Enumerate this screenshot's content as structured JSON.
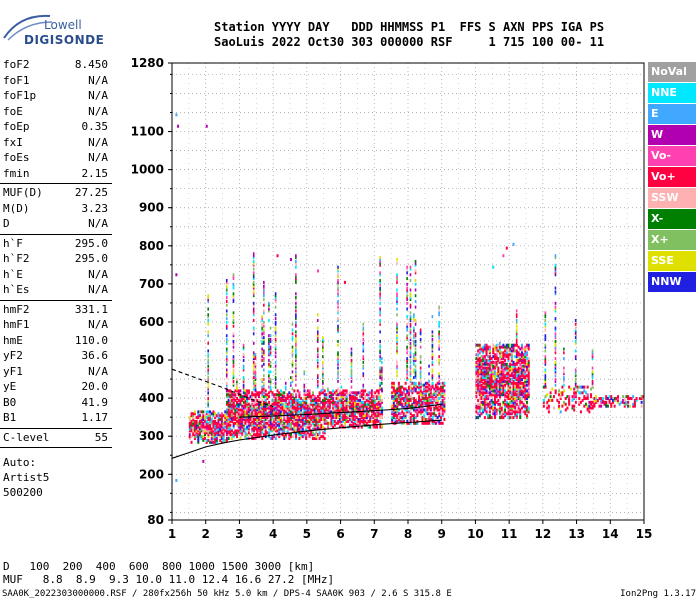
{
  "logo": {
    "line1": "Lowell",
    "line2": "DIGISONDE"
  },
  "header": {
    "row1": "Station YYYY DAY   DDD HHMMSS P1  FFS S AXN PPS IGA PS",
    "row2": "SaoLuis 2022 Oct30 303 000000 RSF     1 715 100 00- 11"
  },
  "params": [
    {
      "name": "foF2",
      "value": "8.450"
    },
    {
      "name": "foF1",
      "value": "N/A"
    },
    {
      "name": "foF1p",
      "value": "N/A"
    },
    {
      "name": "foE",
      "value": "N/A"
    },
    {
      "name": "foEp",
      "value": "0.35"
    },
    {
      "name": "fxI",
      "value": "N/A"
    },
    {
      "name": "foEs",
      "value": "N/A"
    },
    {
      "name": "fmin",
      "value": "2.15"
    },
    {
      "sep": true
    },
    {
      "name": "MUF(D)",
      "value": "27.25"
    },
    {
      "name": "M(D)",
      "value": "3.23"
    },
    {
      "name": "D",
      "value": "N/A"
    },
    {
      "sep": true
    },
    {
      "name": "h`F",
      "value": "295.0"
    },
    {
      "name": "h`F2",
      "value": "295.0"
    },
    {
      "name": "h`E",
      "value": "N/A"
    },
    {
      "name": "h`Es",
      "value": "N/A"
    },
    {
      "sep": true
    },
    {
      "name": "hmF2",
      "value": "331.1"
    },
    {
      "name": "hmF1",
      "value": "N/A"
    },
    {
      "name": "hmE",
      "value": "110.0"
    },
    {
      "name": "yF2",
      "value": "36.6"
    },
    {
      "name": "yF1",
      "value": "N/A"
    },
    {
      "name": "yE",
      "value": "20.0"
    },
    {
      "name": "B0",
      "value": "41.9"
    },
    {
      "name": "B1",
      "value": "1.17"
    },
    {
      "sep": true
    },
    {
      "name": "C-level",
      "value": "55"
    },
    {
      "sep": true
    }
  ],
  "auto": [
    "Auto:",
    "Artist5",
    "500200"
  ],
  "legend": [
    {
      "label": "NoVal",
      "color": "#a0a0a0"
    },
    {
      "label": "NNE",
      "color": "#00e8ff"
    },
    {
      "label": "E",
      "color": "#40a8ff"
    },
    {
      "label": "W",
      "color": "#b000b0"
    },
    {
      "label": "Vo-",
      "color": "#ff40b0"
    },
    {
      "label": "Vo+",
      "color": "#ff0040"
    },
    {
      "label": "SSW",
      "color": "#ffb0b0"
    },
    {
      "label": "X-",
      "color": "#008000"
    },
    {
      "label": "X+",
      "color": "#80c060"
    },
    {
      "label": "SSE",
      "color": "#e0e000"
    },
    {
      "label": "NNW",
      "color": "#2020e0"
    }
  ],
  "muf_table": {
    "d_label": "D",
    "d_row": "100  200  400  600  800 1000 1500 3000 [km]",
    "muf_label": "MUF",
    "muf_row": "8.8  8.9  9.3 10.0 11.0 12.4 16.6 27.2 [MHz]"
  },
  "footer": {
    "left": "SAA0K_2022303000000.RSF / 280fx256h 50 kHz 5.0 km / DPS-4 SAA0K 903 / 2.6 S 315.8 E",
    "right": "Ion2Png 1.3.17"
  },
  "chart_data": {
    "type": "scatter",
    "title": "",
    "xlabel": "",
    "ylabel": "",
    "x_ticks": [
      1,
      2,
      3,
      4,
      5,
      6,
      7,
      8,
      9,
      10,
      11,
      12,
      13,
      14,
      15
    ],
    "y_ticks": [
      80,
      200,
      300,
      400,
      500,
      600,
      700,
      800,
      900,
      1000,
      1100,
      1280
    ],
    "xlim": [
      1,
      15
    ],
    "ylim": [
      80,
      1280
    ],
    "grid": true,
    "clusters": [
      {
        "fmin": 1.5,
        "fmax": 2.6,
        "hmin": 280,
        "hmax": 365,
        "density": 0.85,
        "spike": 0.05
      },
      {
        "fmin": 2.6,
        "fmax": 5.5,
        "hmin": 290,
        "hmax": 420,
        "density": 0.9,
        "spike": 0.35
      },
      {
        "fmin": 5.5,
        "fmax": 7.2,
        "hmin": 320,
        "hmax": 420,
        "density": 0.85,
        "spike": 0.15
      },
      {
        "fmin": 7.5,
        "fmax": 9.1,
        "hmin": 330,
        "hmax": 440,
        "density": 0.8,
        "spike": 0.25
      },
      {
        "fmin": 10.0,
        "fmax": 11.6,
        "hmin": 345,
        "hmax": 540,
        "density": 0.85,
        "spike": 0.05
      },
      {
        "fmin": 12.0,
        "fmax": 13.5,
        "hmin": 360,
        "hmax": 430,
        "density": 0.35,
        "spike": 0.1
      },
      {
        "fmin": 13.5,
        "fmax": 15.0,
        "hmin": 375,
        "hmax": 405,
        "density": 0.6,
        "spike": 0.0
      }
    ],
    "scattered_points": [
      {
        "f": 1.1,
        "h": 1140,
        "c": "#40a8ff"
      },
      {
        "f": 1.15,
        "h": 1110,
        "c": "#b000b0"
      },
      {
        "f": 2.0,
        "h": 1110,
        "c": "#b000b0"
      },
      {
        "f": 1.1,
        "h": 720,
        "c": "#b000b0"
      },
      {
        "f": 1.1,
        "h": 180,
        "c": "#40a8ff"
      },
      {
        "f": 1.9,
        "h": 230,
        "c": "#b000b0"
      },
      {
        "f": 10.8,
        "h": 770,
        "c": "#ff40b0"
      },
      {
        "f": 10.9,
        "h": 790,
        "c": "#ff0040"
      },
      {
        "f": 11.1,
        "h": 800,
        "c": "#40a8ff"
      },
      {
        "f": 10.5,
        "h": 740,
        "c": "#00e8ff"
      },
      {
        "f": 4.1,
        "h": 770,
        "c": "#ff0040"
      },
      {
        "f": 4.5,
        "h": 760,
        "c": "#b000b0"
      },
      {
        "f": 5.3,
        "h": 730,
        "c": "#ff40b0"
      },
      {
        "f": 6.1,
        "h": 700,
        "c": "#ff0040"
      }
    ],
    "curves": [
      {
        "name": "profile",
        "style": "solid",
        "points": [
          [
            1,
            242
          ],
          [
            1.5,
            257
          ],
          [
            2,
            272
          ],
          [
            2.5,
            282
          ],
          [
            3,
            290
          ],
          [
            4,
            303
          ],
          [
            5,
            314
          ],
          [
            6,
            322
          ],
          [
            7,
            330
          ],
          [
            8,
            336
          ],
          [
            9,
            342
          ]
        ]
      },
      {
        "name": "virtual-trace",
        "style": "dashed",
        "points": [
          [
            1,
            476
          ],
          [
            1.5,
            460
          ],
          [
            2,
            444
          ],
          [
            2.5,
            428
          ],
          [
            3,
            410
          ],
          [
            3.5,
            392
          ],
          [
            4,
            378
          ]
        ]
      },
      {
        "name": "virtual-trace-2",
        "style": "solid",
        "points": [
          [
            3,
            350
          ],
          [
            4,
            353
          ],
          [
            5,
            357
          ],
          [
            6,
            362
          ],
          [
            7,
            367
          ],
          [
            8,
            373
          ],
          [
            8.5,
            378
          ],
          [
            9,
            384
          ]
        ]
      }
    ]
  }
}
